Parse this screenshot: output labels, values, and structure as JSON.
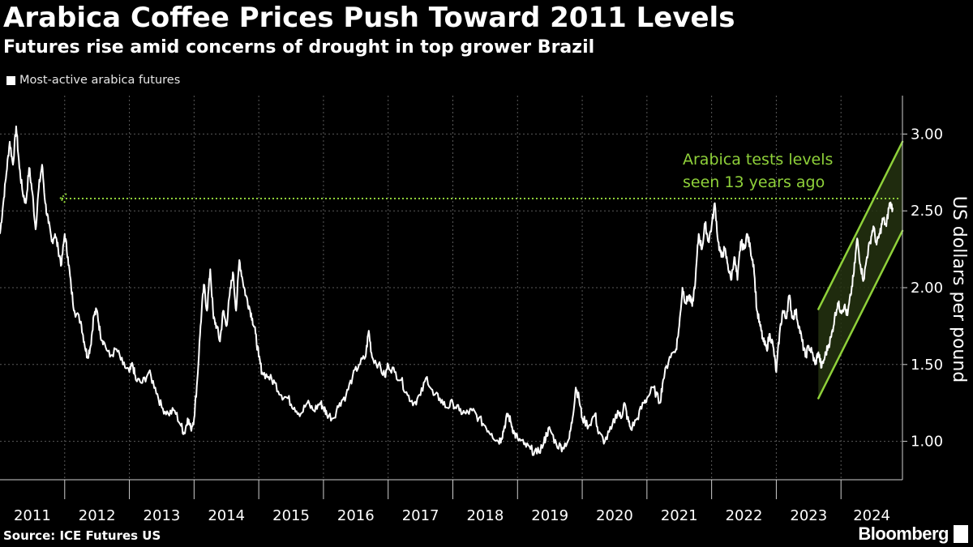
{
  "header": {
    "title": "Arabica Coffee Prices Push Toward 2011 Levels",
    "subtitle": "Futures rise amid concerns of drought in top grower Brazil"
  },
  "footer": {
    "source": "Source: ICE Futures US",
    "brand": "Bloomberg"
  },
  "colors": {
    "background": "#000000",
    "line": "#ffffff",
    "accent": "#8fd13a",
    "grid": "#5a5a5a"
  },
  "chart_data": {
    "type": "line",
    "legend": "Most-active arabica futures",
    "legend_position": "top-left",
    "ylabel": "US dollars per pound",
    "ylim": [
      0.75,
      3.25
    ],
    "yticks": [
      1.0,
      1.5,
      2.0,
      2.5,
      3.0
    ],
    "ytick_labels": [
      "1.00",
      "1.50",
      "2.00",
      "2.50",
      "3.00"
    ],
    "xlim": [
      2011.0,
      2024.95
    ],
    "xticks": [
      "2011",
      "2012",
      "2013",
      "2014",
      "2015",
      "2016",
      "2017",
      "2018",
      "2019",
      "2020",
      "2021",
      "2022",
      "2023",
      "2024"
    ],
    "grid": true,
    "series": [
      {
        "name": "Most-active arabica futures",
        "points": [
          [
            2011.0,
            2.35
          ],
          [
            2011.05,
            2.55
          ],
          [
            2011.1,
            2.75
          ],
          [
            2011.15,
            2.95
          ],
          [
            2011.2,
            2.8
          ],
          [
            2011.25,
            3.05
          ],
          [
            2011.3,
            2.78
          ],
          [
            2011.35,
            2.62
          ],
          [
            2011.4,
            2.55
          ],
          [
            2011.45,
            2.78
          ],
          [
            2011.5,
            2.62
          ],
          [
            2011.55,
            2.38
          ],
          [
            2011.6,
            2.65
          ],
          [
            2011.65,
            2.8
          ],
          [
            2011.7,
            2.55
          ],
          [
            2011.75,
            2.42
          ],
          [
            2011.8,
            2.3
          ],
          [
            2011.85,
            2.35
          ],
          [
            2011.9,
            2.25
          ],
          [
            2011.95,
            2.15
          ],
          [
            2012.0,
            2.35
          ],
          [
            2012.05,
            2.2
          ],
          [
            2012.1,
            2.0
          ],
          [
            2012.15,
            1.85
          ],
          [
            2012.25,
            1.78
          ],
          [
            2012.3,
            1.65
          ],
          [
            2012.35,
            1.55
          ],
          [
            2012.4,
            1.62
          ],
          [
            2012.45,
            1.82
          ],
          [
            2012.5,
            1.85
          ],
          [
            2012.55,
            1.7
          ],
          [
            2012.6,
            1.65
          ],
          [
            2012.7,
            1.55
          ],
          [
            2012.8,
            1.6
          ],
          [
            2012.9,
            1.5
          ],
          [
            2013.0,
            1.45
          ],
          [
            2013.05,
            1.5
          ],
          [
            2013.1,
            1.4
          ],
          [
            2013.2,
            1.38
          ],
          [
            2013.3,
            1.45
          ],
          [
            2013.4,
            1.35
          ],
          [
            2013.5,
            1.22
          ],
          [
            2013.6,
            1.18
          ],
          [
            2013.7,
            1.2
          ],
          [
            2013.8,
            1.1
          ],
          [
            2013.85,
            1.05
          ],
          [
            2013.9,
            1.15
          ],
          [
            2013.95,
            1.08
          ],
          [
            2014.0,
            1.15
          ],
          [
            2014.05,
            1.4
          ],
          [
            2014.1,
            1.75
          ],
          [
            2014.15,
            2.02
          ],
          [
            2014.2,
            1.85
          ],
          [
            2014.25,
            2.12
          ],
          [
            2014.3,
            1.8
          ],
          [
            2014.35,
            1.75
          ],
          [
            2014.4,
            1.65
          ],
          [
            2014.45,
            1.85
          ],
          [
            2014.5,
            1.75
          ],
          [
            2014.55,
            1.95
          ],
          [
            2014.6,
            2.1
          ],
          [
            2014.65,
            1.85
          ],
          [
            2014.7,
            2.18
          ],
          [
            2014.75,
            2.05
          ],
          [
            2014.8,
            1.95
          ],
          [
            2014.85,
            1.88
          ],
          [
            2014.9,
            1.8
          ],
          [
            2014.95,
            1.7
          ],
          [
            2015.0,
            1.55
          ],
          [
            2015.05,
            1.45
          ],
          [
            2015.15,
            1.42
          ],
          [
            2015.25,
            1.38
          ],
          [
            2015.35,
            1.3
          ],
          [
            2015.45,
            1.28
          ],
          [
            2015.55,
            1.22
          ],
          [
            2015.65,
            1.18
          ],
          [
            2015.75,
            1.25
          ],
          [
            2015.85,
            1.2
          ],
          [
            2015.95,
            1.25
          ],
          [
            2016.0,
            1.22
          ],
          [
            2016.05,
            1.18
          ],
          [
            2016.15,
            1.15
          ],
          [
            2016.25,
            1.25
          ],
          [
            2016.35,
            1.3
          ],
          [
            2016.45,
            1.42
          ],
          [
            2016.55,
            1.5
          ],
          [
            2016.65,
            1.55
          ],
          [
            2016.7,
            1.72
          ],
          [
            2016.75,
            1.55
          ],
          [
            2016.85,
            1.5
          ],
          [
            2016.95,
            1.42
          ],
          [
            2017.0,
            1.5
          ],
          [
            2017.1,
            1.45
          ],
          [
            2017.2,
            1.4
          ],
          [
            2017.3,
            1.3
          ],
          [
            2017.4,
            1.25
          ],
          [
            2017.5,
            1.3
          ],
          [
            2017.6,
            1.42
          ],
          [
            2017.7,
            1.3
          ],
          [
            2017.8,
            1.28
          ],
          [
            2017.9,
            1.22
          ],
          [
            2018.0,
            1.25
          ],
          [
            2018.1,
            1.2
          ],
          [
            2018.2,
            1.18
          ],
          [
            2018.3,
            1.2
          ],
          [
            2018.4,
            1.15
          ],
          [
            2018.5,
            1.1
          ],
          [
            2018.6,
            1.05
          ],
          [
            2018.7,
            1.0
          ],
          [
            2018.75,
            1.02
          ],
          [
            2018.8,
            1.1
          ],
          [
            2018.85,
            1.18
          ],
          [
            2018.9,
            1.12
          ],
          [
            2018.95,
            1.05
          ],
          [
            2019.0,
            1.02
          ],
          [
            2019.1,
            0.98
          ],
          [
            2019.2,
            0.95
          ],
          [
            2019.3,
            0.92
          ],
          [
            2019.4,
            0.98
          ],
          [
            2019.45,
            1.05
          ],
          [
            2019.5,
            1.08
          ],
          [
            2019.6,
            0.98
          ],
          [
            2019.7,
            0.96
          ],
          [
            2019.8,
            1.02
          ],
          [
            2019.85,
            1.15
          ],
          [
            2019.9,
            1.35
          ],
          [
            2019.95,
            1.28
          ],
          [
            2020.0,
            1.15
          ],
          [
            2020.1,
            1.1
          ],
          [
            2020.2,
            1.18
          ],
          [
            2020.25,
            1.05
          ],
          [
            2020.35,
            1.0
          ],
          [
            2020.45,
            1.08
          ],
          [
            2020.55,
            1.2
          ],
          [
            2020.6,
            1.15
          ],
          [
            2020.65,
            1.25
          ],
          [
            2020.7,
            1.15
          ],
          [
            2020.75,
            1.08
          ],
          [
            2020.85,
            1.15
          ],
          [
            2020.95,
            1.25
          ],
          [
            2021.0,
            1.28
          ],
          [
            2021.1,
            1.35
          ],
          [
            2021.2,
            1.25
          ],
          [
            2021.25,
            1.4
          ],
          [
            2021.35,
            1.55
          ],
          [
            2021.45,
            1.6
          ],
          [
            2021.5,
            1.75
          ],
          [
            2021.55,
            2.0
          ],
          [
            2021.6,
            1.9
          ],
          [
            2021.65,
            1.95
          ],
          [
            2021.7,
            1.88
          ],
          [
            2021.75,
            2.05
          ],
          [
            2021.8,
            2.35
          ],
          [
            2021.85,
            2.25
          ],
          [
            2021.9,
            2.42
          ],
          [
            2021.95,
            2.3
          ],
          [
            2022.0,
            2.4
          ],
          [
            2022.05,
            2.55
          ],
          [
            2022.1,
            2.3
          ],
          [
            2022.15,
            2.2
          ],
          [
            2022.2,
            2.25
          ],
          [
            2022.25,
            2.15
          ],
          [
            2022.3,
            2.05
          ],
          [
            2022.35,
            2.2
          ],
          [
            2022.4,
            2.05
          ],
          [
            2022.45,
            2.3
          ],
          [
            2022.5,
            2.25
          ],
          [
            2022.55,
            2.35
          ],
          [
            2022.6,
            2.25
          ],
          [
            2022.65,
            2.15
          ],
          [
            2022.7,
            1.85
          ],
          [
            2022.75,
            1.75
          ],
          [
            2022.8,
            1.65
          ],
          [
            2022.85,
            1.6
          ],
          [
            2022.9,
            1.7
          ],
          [
            2022.95,
            1.62
          ],
          [
            2023.0,
            1.45
          ],
          [
            2023.05,
            1.7
          ],
          [
            2023.1,
            1.85
          ],
          [
            2023.15,
            1.8
          ],
          [
            2023.2,
            1.95
          ],
          [
            2023.25,
            1.8
          ],
          [
            2023.3,
            1.85
          ],
          [
            2023.35,
            1.75
          ],
          [
            2023.4,
            1.65
          ],
          [
            2023.45,
            1.55
          ],
          [
            2023.5,
            1.62
          ],
          [
            2023.55,
            1.58
          ],
          [
            2023.6,
            1.5
          ],
          [
            2023.65,
            1.58
          ],
          [
            2023.7,
            1.48
          ],
          [
            2023.75,
            1.55
          ],
          [
            2023.8,
            1.62
          ],
          [
            2023.85,
            1.68
          ],
          [
            2023.9,
            1.8
          ],
          [
            2023.95,
            1.9
          ],
          [
            2024.0,
            1.85
          ],
          [
            2024.05,
            1.88
          ],
          [
            2024.1,
            1.82
          ],
          [
            2024.15,
            1.95
          ],
          [
            2024.2,
            2.1
          ],
          [
            2024.25,
            2.32
          ],
          [
            2024.3,
            2.15
          ],
          [
            2024.35,
            2.05
          ],
          [
            2024.4,
            2.2
          ],
          [
            2024.45,
            2.3
          ],
          [
            2024.5,
            2.4
          ],
          [
            2024.55,
            2.28
          ],
          [
            2024.6,
            2.35
          ],
          [
            2024.65,
            2.45
          ],
          [
            2024.7,
            2.4
          ],
          [
            2024.75,
            2.55
          ],
          [
            2024.8,
            2.52
          ]
        ]
      }
    ],
    "reference_line": {
      "y": 2.58,
      "style": "dotted"
    },
    "annotation": {
      "lines": [
        "Arabica tests levels",
        "seen 13 years ago"
      ]
    },
    "channel": {
      "upper": [
        [
          2023.65,
          1.86
        ],
        [
          2024.95,
          2.95
        ]
      ],
      "lower": [
        [
          2023.65,
          1.28
        ],
        [
          2024.95,
          2.37
        ]
      ]
    }
  }
}
